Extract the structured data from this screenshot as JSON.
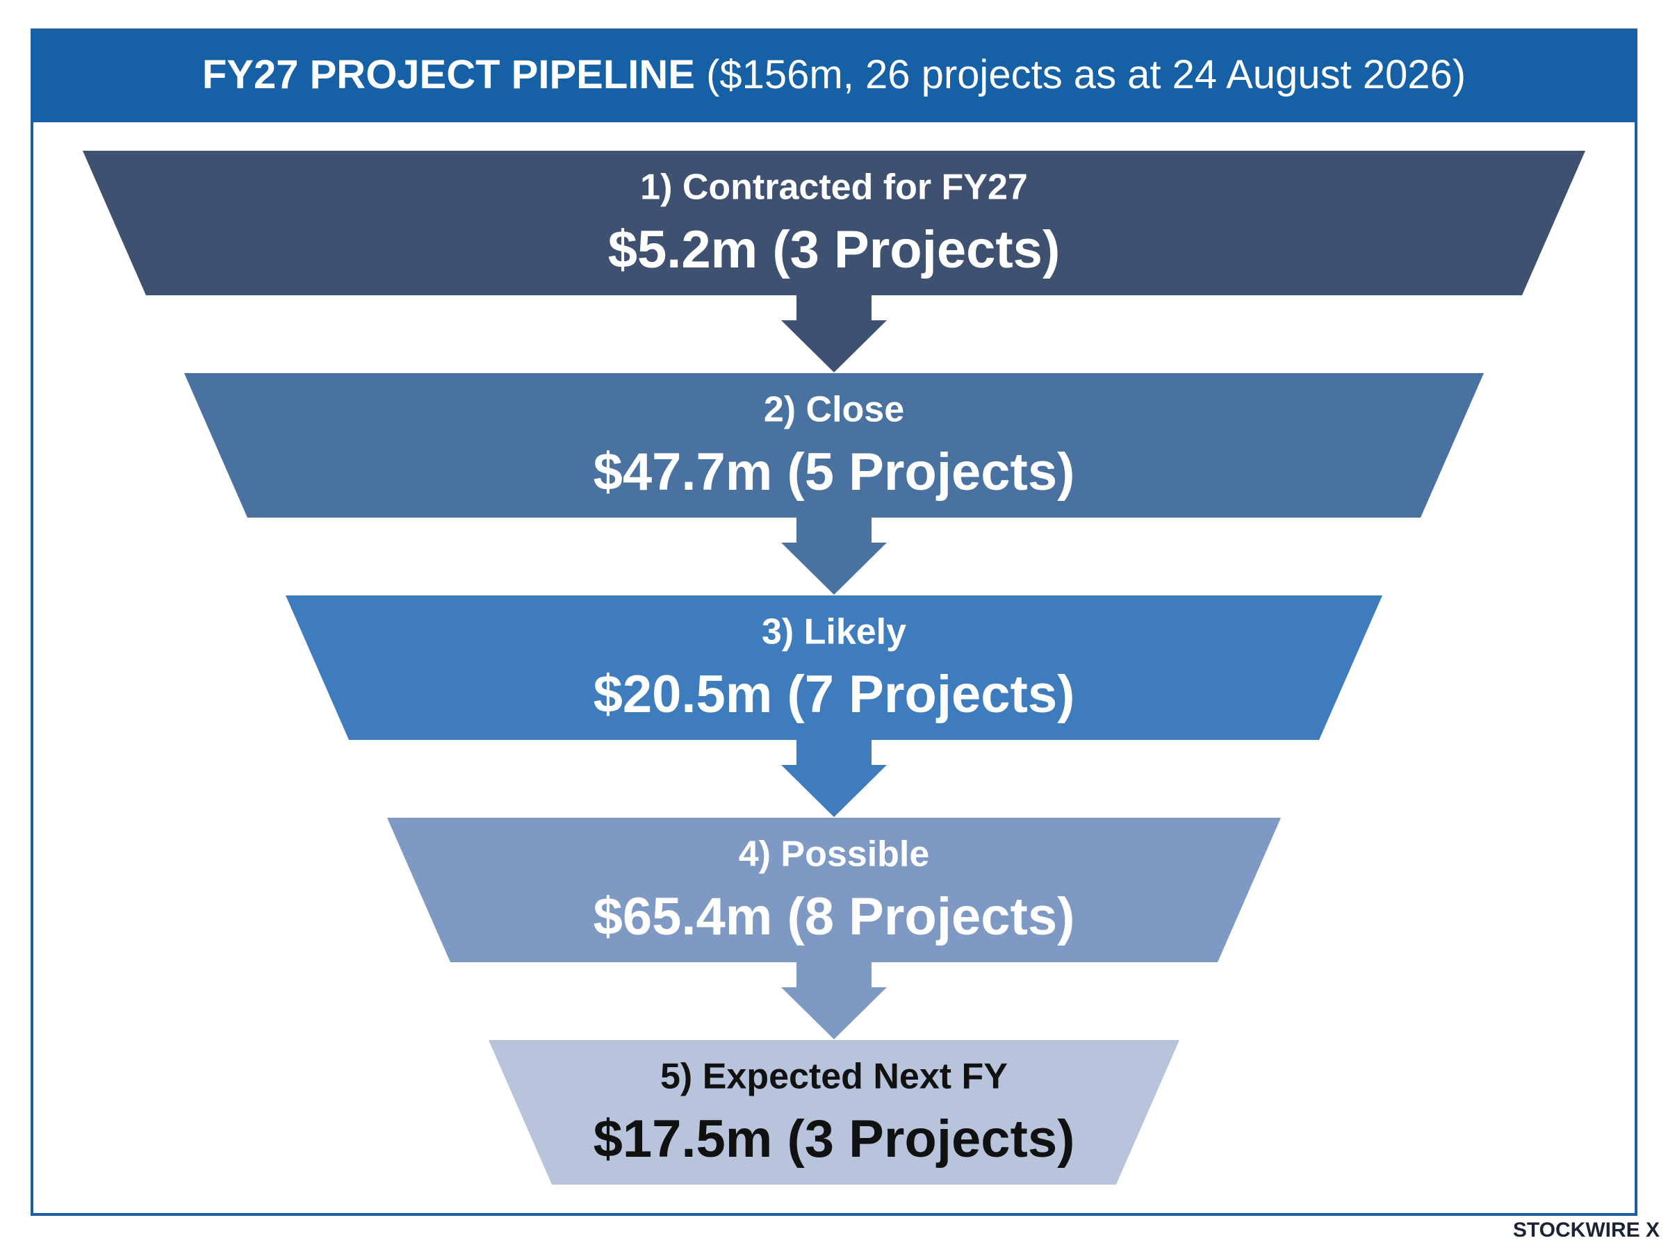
{
  "header": {
    "title_bold": "FY27 PROJECT PIPELINE",
    "title_rest": "($156m, 26 projects as at 24 August 2026)"
  },
  "stages": [
    {
      "label": "1) Contracted for FY27",
      "value": "$5.2m (3 Projects)",
      "color": "#3f5170",
      "text_color": "#ffffff"
    },
    {
      "label": "2) Close",
      "value": "$47.7m (5 Projects)",
      "color": "#4a72a0",
      "text_color": "#ffffff"
    },
    {
      "label": "3) Likely",
      "value": "$20.5m (7 Projects)",
      "color": "#3f7cbd",
      "text_color": "#ffffff"
    },
    {
      "label": "4) Possible",
      "value": "$65.4m (8 Projects)",
      "color": "#7e9ac4",
      "text_color": "#ffffff"
    },
    {
      "label": "5) Expected Next FY",
      "value": "$17.5m (3 Projects)",
      "color": "#b7c4dc",
      "text_color": "#111111"
    }
  ],
  "footer": {
    "brand": "STOCKWIRE X"
  }
}
